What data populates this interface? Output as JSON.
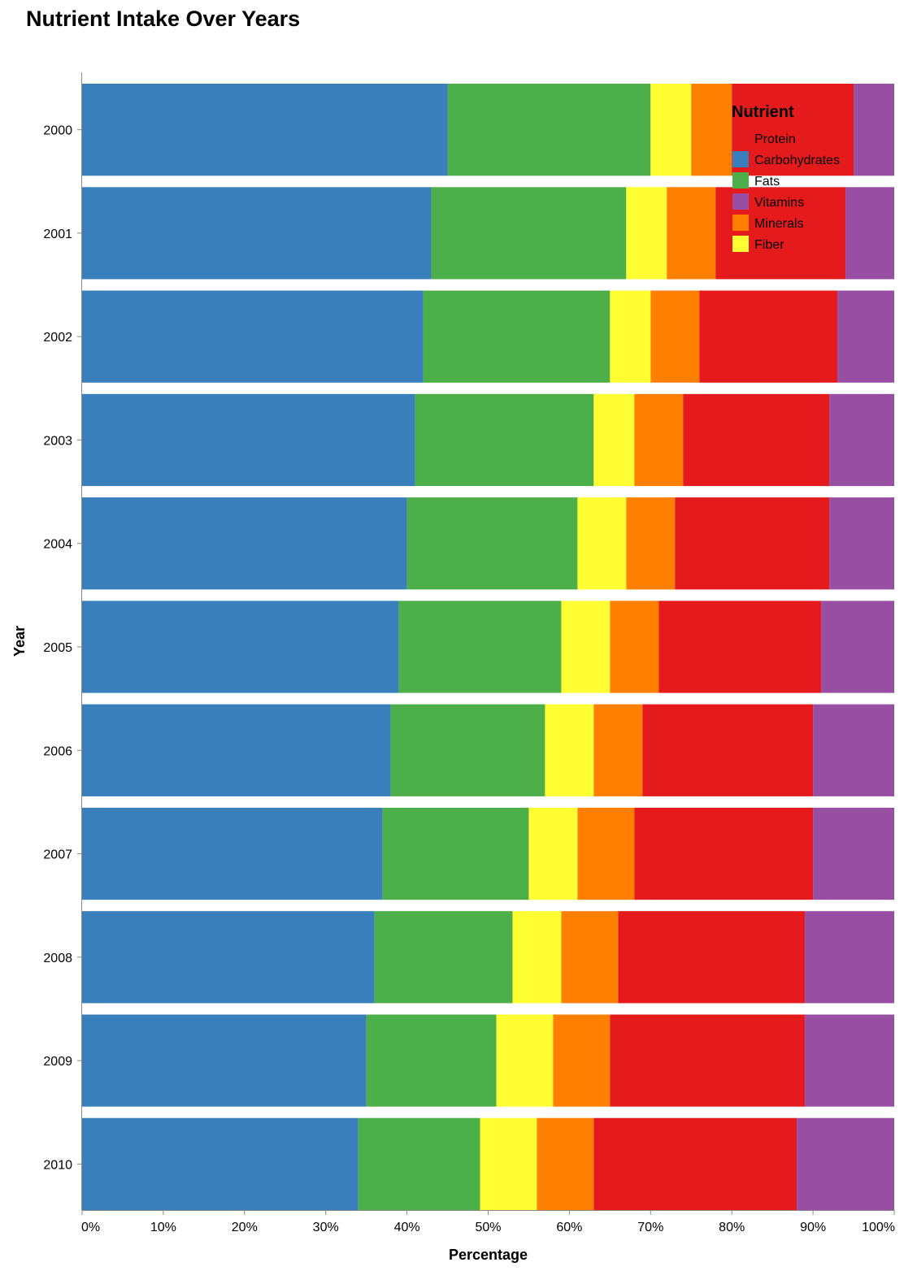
{
  "chart_data": {
    "type": "bar",
    "orientation": "horizontal",
    "stacked": "normalized",
    "title": "Nutrient Intake Over Years",
    "xlabel": "Percentage",
    "ylabel": "Year",
    "xlim": [
      0,
      1
    ],
    "xticks": [
      "0%",
      "10%",
      "20%",
      "30%",
      "40%",
      "50%",
      "60%",
      "70%",
      "80%",
      "90%",
      "100%"
    ],
    "grid": false,
    "legend": {
      "title": "Nutrient",
      "placement": "top-right"
    },
    "categories": [
      "2000",
      "2001",
      "2002",
      "2003",
      "2004",
      "2005",
      "2006",
      "2007",
      "2008",
      "2009",
      "2010"
    ],
    "series": [
      {
        "name": "Carbohydrates",
        "color": "#3a7fbc",
        "values": [
          45,
          43,
          42,
          41,
          40,
          39,
          38,
          37,
          36,
          35,
          34
        ]
      },
      {
        "name": "Fats",
        "color": "#4daf4a",
        "values": [
          25,
          24,
          23,
          22,
          21,
          20,
          19,
          18,
          17,
          16,
          15
        ]
      },
      {
        "name": "Fiber",
        "color": "#ffff33",
        "values": [
          5,
          5,
          5,
          5,
          6,
          6,
          6,
          6,
          6,
          7,
          7
        ]
      },
      {
        "name": "Minerals",
        "color": "#ff7f00",
        "values": [
          5,
          6,
          6,
          6,
          6,
          6,
          6,
          7,
          7,
          7,
          7
        ]
      },
      {
        "name": "Protein",
        "color": "#e41a1c",
        "values": [
          15,
          16,
          17,
          18,
          19,
          20,
          21,
          22,
          23,
          24,
          25
        ]
      },
      {
        "name": "Vitamins",
        "color": "#984ea3",
        "values": [
          5,
          6,
          7,
          8,
          8,
          9,
          10,
          10,
          11,
          11,
          12
        ]
      }
    ],
    "legend_entries": [
      {
        "name": "Protein",
        "color": ""
      },
      {
        "name": "Carbohydrates",
        "color": "#3a7fbc"
      },
      {
        "name": "Fats",
        "color": "#4daf4a"
      },
      {
        "name": "Vitamins",
        "color": "#984ea3"
      },
      {
        "name": "Minerals",
        "color": "#ff7f00"
      },
      {
        "name": "Fiber",
        "color": "#ffff33"
      }
    ]
  }
}
